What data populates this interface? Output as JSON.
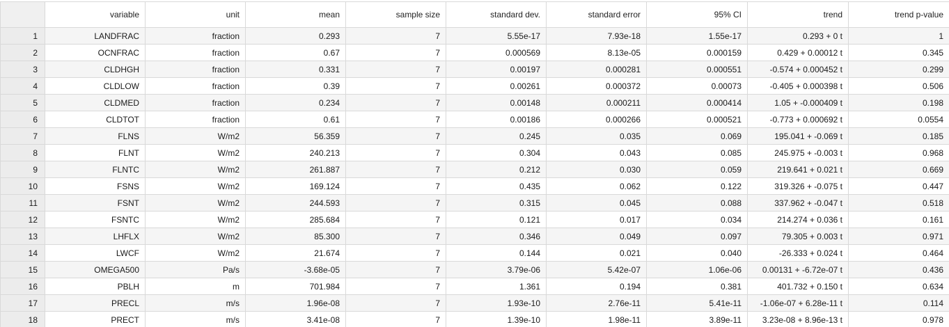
{
  "table": {
    "columns": [
      "",
      "variable",
      "unit",
      "mean",
      "sample size",
      "standard dev.",
      "standard error",
      "95% CI",
      "trend",
      "trend p-value"
    ],
    "rows": [
      [
        "1",
        "LANDFRAC",
        "fraction",
        "0.293",
        "7",
        "5.55e-17",
        "7.93e-18",
        "1.55e-17",
        "0.293 +  0 t",
        "1"
      ],
      [
        "2",
        "OCNFRAC",
        "fraction",
        "0.67",
        "7",
        "0.000569",
        "8.13e-05",
        "0.000159",
        "0.429 +  0.00012 t",
        "0.345"
      ],
      [
        "3",
        "CLDHGH",
        "fraction",
        "0.331",
        "7",
        "0.00197",
        "0.000281",
        "0.000551",
        "-0.574 +  0.000452 t",
        "0.299"
      ],
      [
        "4",
        "CLDLOW",
        "fraction",
        "0.39",
        "7",
        "0.00261",
        "0.000372",
        "0.00073",
        "-0.405 +  0.000398 t",
        "0.506"
      ],
      [
        "5",
        "CLDMED",
        "fraction",
        "0.234",
        "7",
        "0.00148",
        "0.000211",
        "0.000414",
        "1.05 + -0.000409 t",
        "0.198"
      ],
      [
        "6",
        "CLDTOT",
        "fraction",
        "0.61",
        "7",
        "0.00186",
        "0.000266",
        "0.000521",
        "-0.773 +  0.000692 t",
        "0.0554"
      ],
      [
        "7",
        "FLNS",
        "W/m2",
        "56.359",
        "7",
        "0.245",
        "0.035",
        "0.069",
        "195.041 + -0.069 t",
        "0.185"
      ],
      [
        "8",
        "FLNT",
        "W/m2",
        "240.213",
        "7",
        "0.304",
        "0.043",
        "0.085",
        "245.975 + -0.003 t",
        "0.968"
      ],
      [
        "9",
        "FLNTC",
        "W/m2",
        "261.887",
        "7",
        "0.212",
        "0.030",
        "0.059",
        "219.641 +  0.021 t",
        "0.669"
      ],
      [
        "10",
        "FSNS",
        "W/m2",
        "169.124",
        "7",
        "0.435",
        "0.062",
        "0.122",
        "319.326 + -0.075 t",
        "0.447"
      ],
      [
        "11",
        "FSNT",
        "W/m2",
        "244.593",
        "7",
        "0.315",
        "0.045",
        "0.088",
        "337.962 + -0.047 t",
        "0.518"
      ],
      [
        "12",
        "FSNTC",
        "W/m2",
        "285.684",
        "7",
        "0.121",
        "0.017",
        "0.034",
        "214.274 +  0.036 t",
        "0.161"
      ],
      [
        "13",
        "LHFLX",
        "W/m2",
        "85.300",
        "7",
        "0.346",
        "0.049",
        "0.097",
        "79.305 +  0.003 t",
        "0.971"
      ],
      [
        "14",
        "LWCF",
        "W/m2",
        "21.674",
        "7",
        "0.144",
        "0.021",
        "0.040",
        "-26.333 +  0.024 t",
        "0.464"
      ],
      [
        "15",
        "OMEGA500",
        "Pa/s",
        "-3.68e-05",
        "7",
        "3.79e-06",
        "5.42e-07",
        "1.06e-06",
        "0.00131 + -6.72e-07 t",
        "0.436"
      ],
      [
        "16",
        "PBLH",
        "m",
        "701.984",
        "7",
        "1.361",
        "0.194",
        "0.381",
        "401.732 +  0.150 t",
        "0.634"
      ],
      [
        "17",
        "PRECL",
        "m/s",
        "1.96e-08",
        "7",
        "1.93e-10",
        "2.76e-11",
        "5.41e-11",
        "-1.06e-07 +  6.28e-11 t",
        "0.114"
      ],
      [
        "18",
        "PRECT",
        "m/s",
        "3.41e-08",
        "7",
        "1.39e-10",
        "1.98e-11",
        "3.89e-11",
        "3.23e-08 +  8.96e-13 t",
        "0.978"
      ]
    ]
  }
}
